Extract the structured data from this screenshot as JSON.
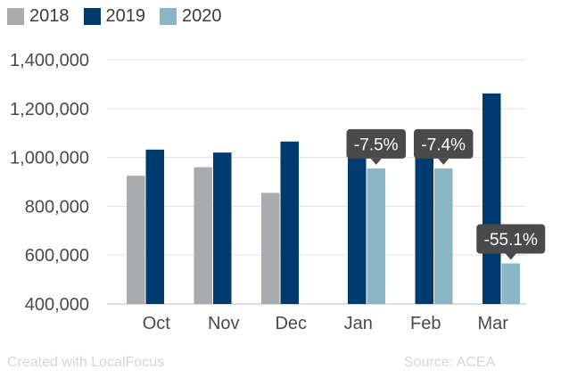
{
  "chart_data": {
    "type": "bar",
    "categories": [
      "Oct",
      "Nov",
      "Dec",
      "Jan",
      "Feb",
      "Mar"
    ],
    "series": [
      {
        "name": "2018",
        "color": "#a9abae",
        "values": [
          925000,
          960000,
          855000,
          null,
          null,
          null
        ]
      },
      {
        "name": "2019",
        "color": "#003b6f",
        "values": [
          1032000,
          1020000,
          1065000,
          1032000,
          1032000,
          1262000
        ]
      },
      {
        "name": "2020",
        "color": "#8ab6c6",
        "values": [
          null,
          null,
          null,
          955000,
          955000,
          566000
        ]
      }
    ],
    "y_ticks": [
      "1,400,000",
      "1,200,000",
      "1,000,000",
      "800,000",
      "600,000",
      "400,000"
    ],
    "y_tick_values": [
      1400000,
      1200000,
      1000000,
      800000,
      600000,
      400000
    ],
    "ylim": [
      400000,
      1400000
    ],
    "grid": true,
    "legend_position": "top-left",
    "annotations": [
      {
        "category": "Jan",
        "text": "-7.5%"
      },
      {
        "category": "Feb",
        "text": "-7.4%"
      },
      {
        "category": "Mar",
        "text": "-55.1%"
      }
    ],
    "tooltip_color": "#4a4a4a"
  },
  "footer": {
    "credit": "Created with LocalFocus",
    "source": "Source: ACEA"
  }
}
